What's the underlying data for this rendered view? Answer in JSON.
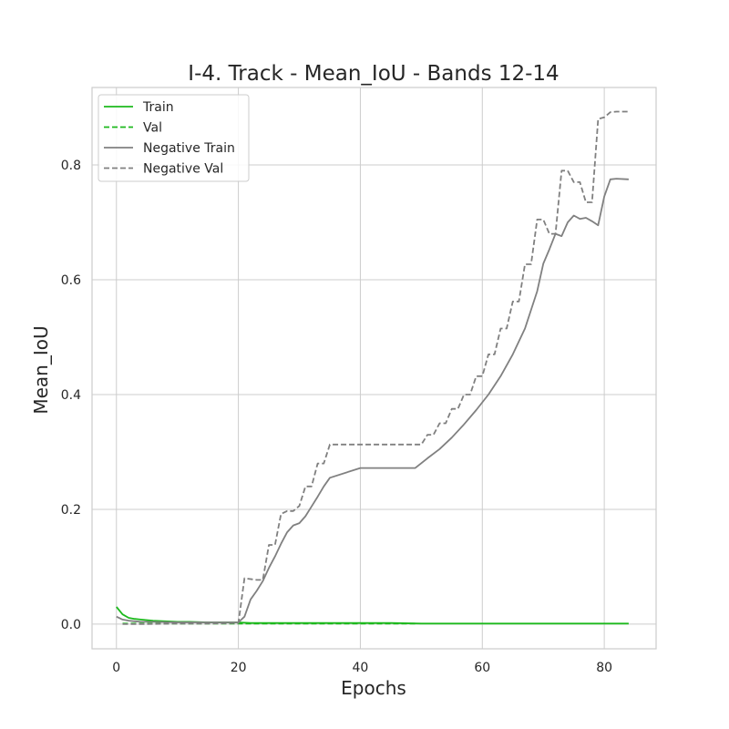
{
  "chart_data": {
    "type": "line",
    "title": "I-4. Track - Mean_IoU - Bands 12-14",
    "xlabel": "Epochs",
    "ylabel": "Mean_IoU",
    "xlim": [
      -4,
      88.5
    ],
    "ylim": [
      -0.043,
      0.935
    ],
    "xticks": [
      0,
      20,
      40,
      60,
      80
    ],
    "yticks": [
      0.0,
      0.2,
      0.4,
      0.6,
      0.8
    ],
    "xtick_labels": [
      "0",
      "20",
      "40",
      "60",
      "80"
    ],
    "ytick_labels": [
      "0.0",
      "0.2",
      "0.4",
      "0.6",
      "0.8"
    ],
    "grid": true,
    "legend_position": "top-left",
    "series": [
      {
        "name": "Train",
        "color": "#1db91d",
        "dash": "solid",
        "x": [
          0,
          1,
          2,
          3,
          4,
          5,
          6,
          8,
          10,
          12,
          15,
          18,
          20,
          22,
          25,
          30,
          35,
          40,
          45,
          50,
          55,
          60,
          65,
          70,
          75,
          80,
          84
        ],
        "y": [
          0.03,
          0.017,
          0.011,
          0.009,
          0.008,
          0.007,
          0.006,
          0.005,
          0.004,
          0.004,
          0.003,
          0.003,
          0.003,
          0.002,
          0.002,
          0.002,
          0.002,
          0.002,
          0.002,
          0.001,
          0.001,
          0.001,
          0.001,
          0.001,
          0.001,
          0.001,
          0.001
        ]
      },
      {
        "name": "Val",
        "color": "#1db91d",
        "dash": "dashed",
        "x": [
          1,
          5,
          10,
          15,
          20,
          25,
          30,
          35,
          40,
          45,
          49
        ],
        "y": [
          0.001,
          0.001,
          0.001,
          0.001,
          0.001,
          0.001,
          0.001,
          0.001,
          0.001,
          0.001,
          0.001
        ]
      },
      {
        "name": "Negative Train",
        "color": "#808080",
        "dash": "solid",
        "x": [
          0,
          1,
          2,
          3,
          4,
          5,
          10,
          15,
          20,
          21,
          22,
          23,
          24,
          25,
          26,
          27,
          28,
          29,
          30,
          31,
          32,
          33,
          34,
          35,
          40,
          45,
          49,
          51,
          53,
          55,
          57,
          59,
          61,
          63,
          65,
          67,
          69,
          70,
          71,
          72,
          73,
          74,
          75,
          76,
          77,
          78,
          79,
          80,
          81,
          82,
          84
        ],
        "y": [
          0.013,
          0.008,
          0.006,
          0.005,
          0.004,
          0.004,
          0.003,
          0.003,
          0.003,
          0.013,
          0.043,
          0.058,
          0.075,
          0.098,
          0.118,
          0.14,
          0.16,
          0.172,
          0.176,
          0.188,
          0.205,
          0.222,
          0.24,
          0.255,
          0.272,
          0.272,
          0.272,
          0.289,
          0.305,
          0.325,
          0.348,
          0.373,
          0.4,
          0.432,
          0.47,
          0.515,
          0.58,
          0.628,
          0.653,
          0.68,
          0.676,
          0.7,
          0.712,
          0.706,
          0.708,
          0.702,
          0.695,
          0.745,
          0.775,
          0.776,
          0.775
        ]
      },
      {
        "name": "Negative Val",
        "color": "#808080",
        "dash": "dashed",
        "x": [
          1,
          5,
          10,
          15,
          20,
          21,
          23,
          24,
          25,
          26,
          27,
          28,
          29,
          30,
          31,
          32,
          33,
          34,
          35,
          40,
          45,
          49,
          50,
          51,
          52,
          53,
          54,
          55,
          56,
          57,
          58,
          59,
          60,
          61,
          62,
          63,
          64,
          65,
          66,
          67,
          68,
          69,
          70,
          71,
          72,
          73,
          74,
          75,
          76,
          77,
          78,
          79,
          80,
          81,
          82,
          84
        ],
        "y": [
          0.0,
          0.0,
          0.001,
          0.001,
          0.002,
          0.08,
          0.077,
          0.077,
          0.138,
          0.138,
          0.192,
          0.197,
          0.197,
          0.206,
          0.24,
          0.24,
          0.28,
          0.28,
          0.313,
          0.313,
          0.313,
          0.313,
          0.313,
          0.33,
          0.33,
          0.35,
          0.35,
          0.375,
          0.375,
          0.4,
          0.4,
          0.432,
          0.432,
          0.47,
          0.47,
          0.515,
          0.515,
          0.562,
          0.562,
          0.627,
          0.627,
          0.705,
          0.705,
          0.68,
          0.68,
          0.79,
          0.79,
          0.77,
          0.77,
          0.735,
          0.735,
          0.88,
          0.883,
          0.892,
          0.893,
          0.893
        ]
      }
    ]
  }
}
